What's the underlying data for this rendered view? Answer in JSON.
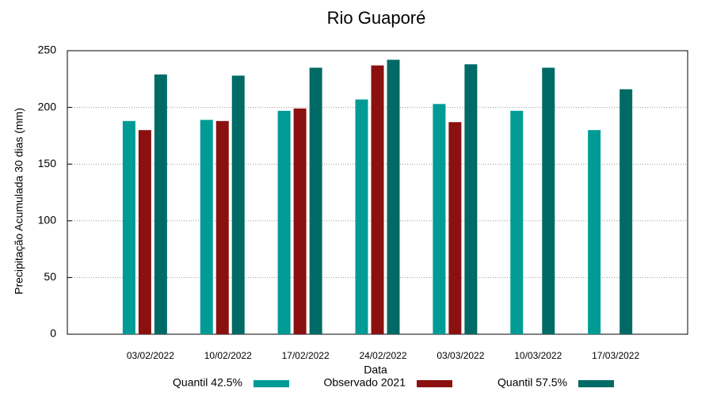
{
  "chart_data": {
    "type": "bar",
    "title": "Rio Guaporé",
    "x_label": "Data",
    "y_label": "Precipitação Acumulada 30 dias (mm)",
    "categories": [
      "03/02/2022",
      "10/02/2022",
      "17/02/2022",
      "24/02/2022",
      "03/03/2022",
      "10/03/2022",
      "17/03/2022"
    ],
    "series": [
      {
        "name": "Quantil 42.5%",
        "color": "#009b95",
        "values": [
          188,
          189,
          197,
          207,
          203,
          197,
          180
        ]
      },
      {
        "name": "Observado 2021",
        "color": "#8b1010",
        "values": [
          180,
          188,
          199,
          237,
          187,
          null,
          null
        ]
      },
      {
        "name": "Quantil 57.5%",
        "color": "#006b66",
        "values": [
          229,
          228,
          235,
          242,
          238,
          235,
          216
        ]
      }
    ],
    "ylim": [
      0,
      250
    ],
    "yticks": [
      0,
      50,
      100,
      150,
      200,
      250
    ],
    "grid": true,
    "legend": "bottom"
  }
}
